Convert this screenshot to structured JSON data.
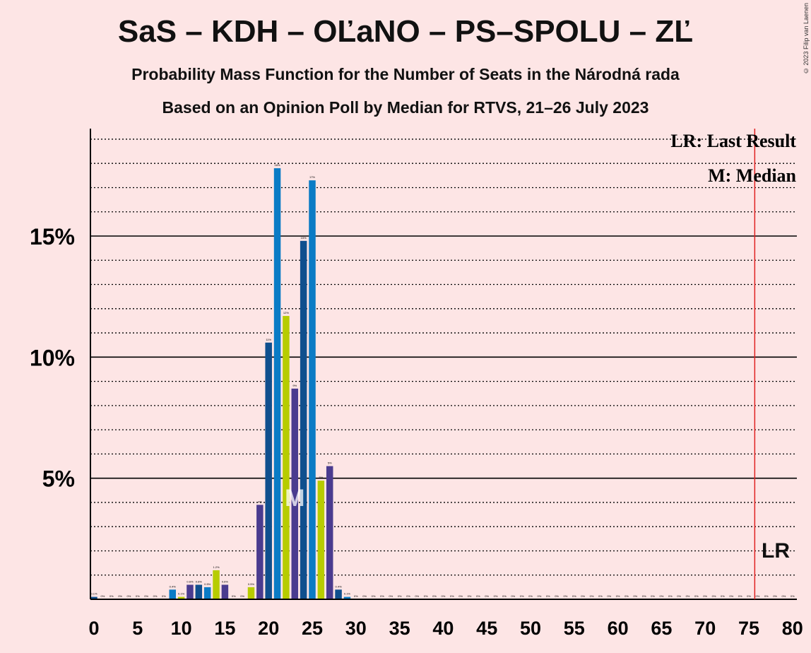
{
  "title": "SaS – KDH – OĽaNO – PS–SPOLU – ZĽ",
  "subtitle": "Probability Mass Function for the Number of Seats in the Národná rada",
  "subtitle2": "Based on an Opinion Poll by Median for RTVS, 21–26 July 2023",
  "copyright": "© 2023 Filip van Laenen",
  "legend": {
    "lr": "LR: Last Result",
    "m": "M: Median"
  },
  "markers": {
    "median_label": "M",
    "median_seats": 23,
    "lr_label": "LR",
    "last_result_seats": 76
  },
  "colors": {
    "background": "#fde5e5",
    "lr_line": "#e02020",
    "series": [
      "#0f4f8e",
      "#0a7bc5",
      "#b7cc00",
      "#4a3b8f"
    ]
  },
  "chart_data": {
    "type": "bar",
    "xlabel": "",
    "ylabel": "",
    "x": [
      0,
      1,
      2,
      3,
      4,
      5,
      6,
      7,
      8,
      9,
      10,
      11,
      12,
      13,
      14,
      15,
      16,
      17,
      18,
      19,
      20,
      21,
      22,
      23,
      24,
      25,
      26,
      27,
      28,
      29,
      30,
      31,
      32,
      33,
      34,
      35,
      36,
      37,
      38,
      39,
      40,
      41,
      42,
      43,
      44,
      45,
      46,
      47,
      48,
      49,
      50,
      51,
      52,
      53,
      54,
      55,
      56,
      57,
      58,
      59,
      60,
      61,
      62,
      63,
      64,
      65,
      66,
      67,
      68,
      69,
      70,
      71,
      72,
      73,
      74,
      75,
      76,
      77,
      78,
      79,
      80
    ],
    "values": [
      0.1,
      0,
      0,
      0,
      0,
      0,
      0,
      0,
      0,
      0.4,
      0.1,
      0.6,
      0.6,
      0.5,
      1.2,
      0.6,
      0,
      0,
      0.5,
      3.9,
      10.6,
      17.8,
      11.7,
      8.7,
      14.8,
      17.3,
      4.9,
      5.5,
      0.4,
      0.1,
      0,
      0,
      0,
      0,
      0,
      0,
      0,
      0,
      0,
      0,
      0,
      0,
      0,
      0,
      0,
      0,
      0,
      0,
      0,
      0,
      0,
      0,
      0,
      0,
      0,
      0,
      0,
      0,
      0,
      0,
      0,
      0,
      0,
      0,
      0,
      0,
      0,
      0,
      0,
      0,
      0,
      0,
      0,
      0,
      0,
      0,
      0,
      0,
      0,
      0,
      0
    ],
    "data_labels": [
      "0.1%",
      "0%",
      "0%",
      "0%",
      "0%",
      "0%",
      "0%",
      "0%",
      "0%",
      "0.4%",
      "0.1%",
      "0.6%",
      "0.6%",
      "0.5%",
      "1.2%",
      "0.6%",
      "0%",
      "0%",
      "0.5%",
      "4%",
      "11%",
      "18%",
      "12%",
      "9%",
      "15%",
      "17%",
      "5%",
      "5%",
      "0.4%",
      "0.1%",
      "0%",
      "0%",
      "0%",
      "0%",
      "0%",
      "0%",
      "0%",
      "0%",
      "0%",
      "0%",
      "0%",
      "0%",
      "0%",
      "0%",
      "0%",
      "0%",
      "0%",
      "0%",
      "0%",
      "0%",
      "0%",
      "0%",
      "0%",
      "0%",
      "0%",
      "0%",
      "0%",
      "0%",
      "0%",
      "0%",
      "0%",
      "0%",
      "0%",
      "0%",
      "0%",
      "0%",
      "0%",
      "0%",
      "0%",
      "0%",
      "0%",
      "0%",
      "0%",
      "0%",
      "0%",
      "0%",
      "0%",
      "0%",
      "0%",
      "0%",
      "0%"
    ],
    "x_ticks": [
      "0",
      "5",
      "10",
      "15",
      "20",
      "25",
      "30",
      "35",
      "40",
      "45",
      "50",
      "55",
      "60",
      "65",
      "70",
      "75",
      "80"
    ],
    "y_ticks": [
      "5%",
      "10%",
      "15%"
    ],
    "xlim": [
      0,
      80
    ],
    "ylim": [
      0,
      19.4
    ],
    "grid": "dotted every 1%, solid every 5%",
    "legend_position": "top-right"
  }
}
